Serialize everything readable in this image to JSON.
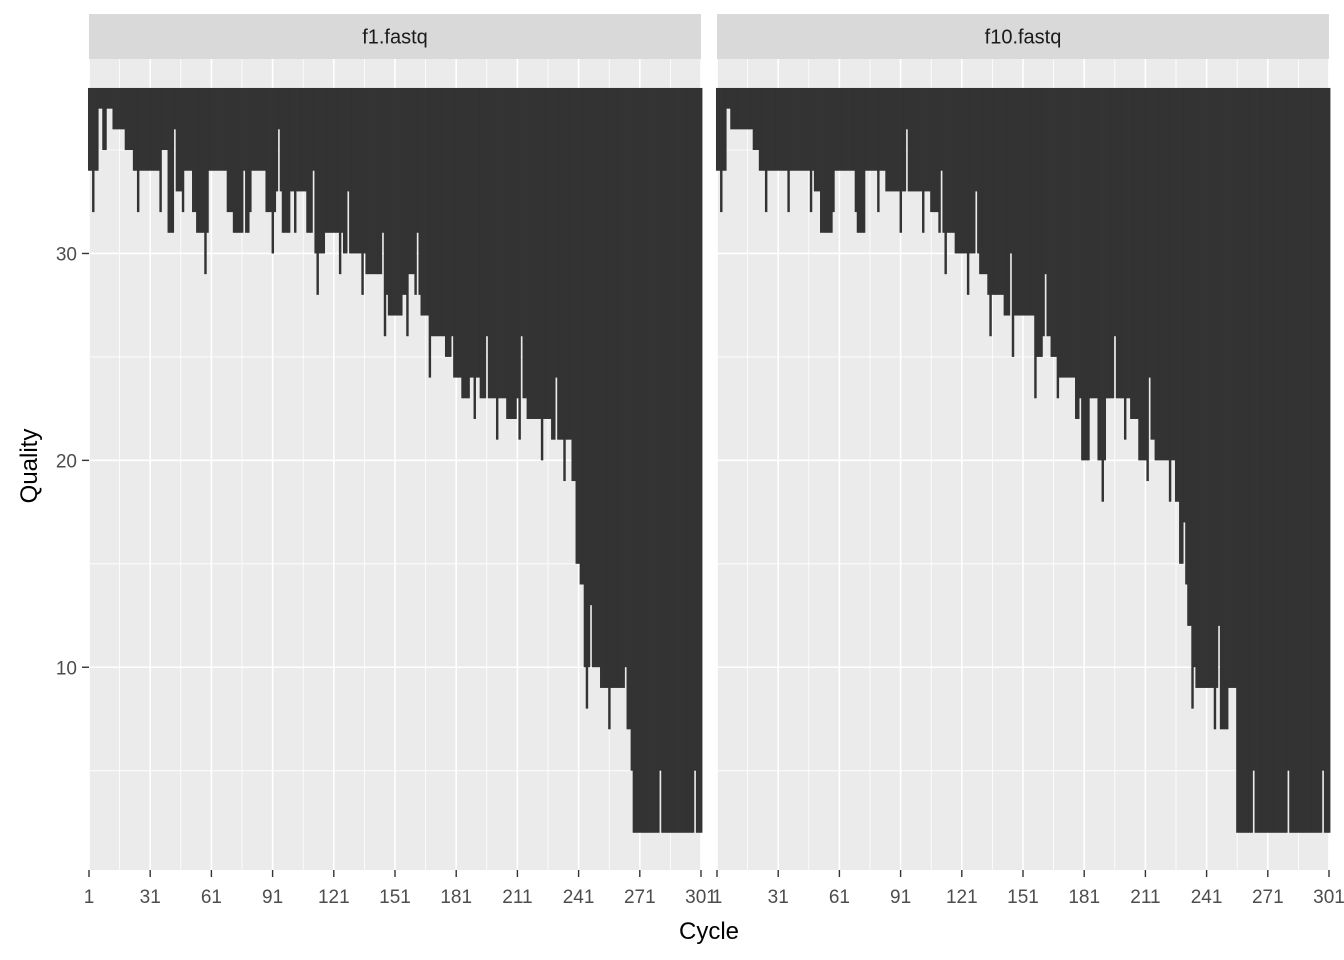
{
  "chart_data": {
    "type": "bar",
    "xlabel": "Cycle",
    "ylabel": "Quality",
    "x_ticks": [
      1,
      31,
      61,
      91,
      121,
      151,
      181,
      211,
      241,
      271,
      301
    ],
    "y_ticks": [
      10,
      20,
      30
    ],
    "xlim": [
      1,
      301
    ],
    "ylim": [
      0.2,
      39.4
    ],
    "grid": true,
    "colors": {
      "panel_bg": "#ebebeb",
      "strip_bg": "#d9d9d9",
      "bar": "#333333",
      "grid": "#ffffff",
      "tick": "#4d4d4d"
    },
    "bar_top": 38,
    "panels": [
      {
        "strip": "f1.fastq",
        "min_quality": [
          [
            1,
            34
          ],
          [
            6,
            37
          ],
          [
            8,
            35
          ],
          [
            10,
            37
          ],
          [
            13,
            36
          ],
          [
            19,
            35
          ],
          [
            23,
            34
          ],
          [
            27,
            34
          ],
          [
            33,
            34
          ],
          [
            37,
            35
          ],
          [
            40,
            31
          ],
          [
            43,
            33
          ],
          [
            47,
            34
          ],
          [
            52,
            32
          ],
          [
            54,
            31
          ],
          [
            60,
            34
          ],
          [
            67,
            34
          ],
          [
            70,
            32
          ],
          [
            72,
            31
          ],
          [
            80,
            34
          ],
          [
            85,
            34
          ],
          [
            88,
            32
          ],
          [
            93,
            33
          ],
          [
            96,
            31
          ],
          [
            100,
            33
          ],
          [
            104,
            33
          ],
          [
            108,
            31
          ],
          [
            112,
            30
          ],
          [
            117,
            31
          ],
          [
            122,
            31
          ],
          [
            126,
            30
          ],
          [
            130,
            30
          ],
          [
            133,
            30
          ],
          [
            137,
            29
          ],
          [
            141,
            29
          ],
          [
            145,
            28
          ],
          [
            148,
            27
          ],
          [
            150,
            27
          ],
          [
            155,
            28
          ],
          [
            158,
            29
          ],
          [
            161,
            28
          ],
          [
            164,
            27
          ],
          [
            168,
            26
          ],
          [
            172,
            26
          ],
          [
            176,
            25
          ],
          [
            180,
            24
          ],
          [
            184,
            23
          ],
          [
            188,
            24
          ],
          [
            193,
            23
          ],
          [
            197,
            23
          ],
          [
            201,
            23
          ],
          [
            206,
            22
          ],
          [
            211,
            23
          ],
          [
            216,
            22
          ],
          [
            220,
            22
          ],
          [
            224,
            22
          ],
          [
            228,
            21
          ],
          [
            232,
            21
          ],
          [
            236,
            21
          ],
          [
            238,
            19
          ],
          [
            240,
            15
          ],
          [
            242,
            14
          ],
          [
            244,
            10
          ],
          [
            248,
            10
          ],
          [
            252,
            9
          ],
          [
            256,
            9
          ],
          [
            260,
            9
          ],
          [
            264,
            7
          ],
          [
            268,
            2
          ],
          [
            275,
            2
          ],
          [
            280,
            2
          ],
          [
            285,
            2
          ],
          [
            290,
            2
          ],
          [
            295,
            2
          ],
          [
            301,
            2
          ]
        ]
      },
      {
        "strip": "f10.fastq",
        "min_quality": [
          [
            1,
            34
          ],
          [
            6,
            37
          ],
          [
            8,
            36
          ],
          [
            14,
            36
          ],
          [
            19,
            35
          ],
          [
            22,
            34
          ],
          [
            26,
            34
          ],
          [
            30,
            34
          ],
          [
            38,
            34
          ],
          [
            44,
            34
          ],
          [
            49,
            33
          ],
          [
            52,
            31
          ],
          [
            58,
            34
          ],
          [
            66,
            34
          ],
          [
            70,
            31
          ],
          [
            74,
            34
          ],
          [
            80,
            34
          ],
          [
            84,
            33
          ],
          [
            88,
            33
          ],
          [
            92,
            33
          ],
          [
            96,
            33
          ],
          [
            100,
            33
          ],
          [
            106,
            32
          ],
          [
            110,
            31
          ],
          [
            115,
            31
          ],
          [
            118,
            30
          ],
          [
            122,
            30
          ],
          [
            126,
            30
          ],
          [
            130,
            29
          ],
          [
            134,
            28
          ],
          [
            138,
            28
          ],
          [
            142,
            27
          ],
          [
            146,
            27
          ],
          [
            150,
            27
          ],
          [
            153,
            27
          ],
          [
            157,
            25
          ],
          [
            161,
            26
          ],
          [
            165,
            25
          ],
          [
            169,
            24
          ],
          [
            173,
            24
          ],
          [
            177,
            22
          ],
          [
            180,
            20
          ],
          [
            184,
            23
          ],
          [
            188,
            20
          ],
          [
            192,
            23
          ],
          [
            196,
            23
          ],
          [
            200,
            23
          ],
          [
            204,
            22
          ],
          [
            208,
            20
          ],
          [
            212,
            21
          ],
          [
            216,
            20
          ],
          [
            220,
            20
          ],
          [
            223,
            20
          ],
          [
            226,
            18
          ],
          [
            228,
            15
          ],
          [
            230,
            14
          ],
          [
            232,
            12
          ],
          [
            234,
            10
          ],
          [
            236,
            9
          ],
          [
            240,
            9
          ],
          [
            244,
            9
          ],
          [
            248,
            7
          ],
          [
            252,
            9
          ],
          [
            256,
            2
          ],
          [
            262,
            2
          ],
          [
            270,
            2
          ],
          [
            280,
            2
          ],
          [
            290,
            2
          ],
          [
            301,
            2
          ]
        ]
      }
    ]
  }
}
